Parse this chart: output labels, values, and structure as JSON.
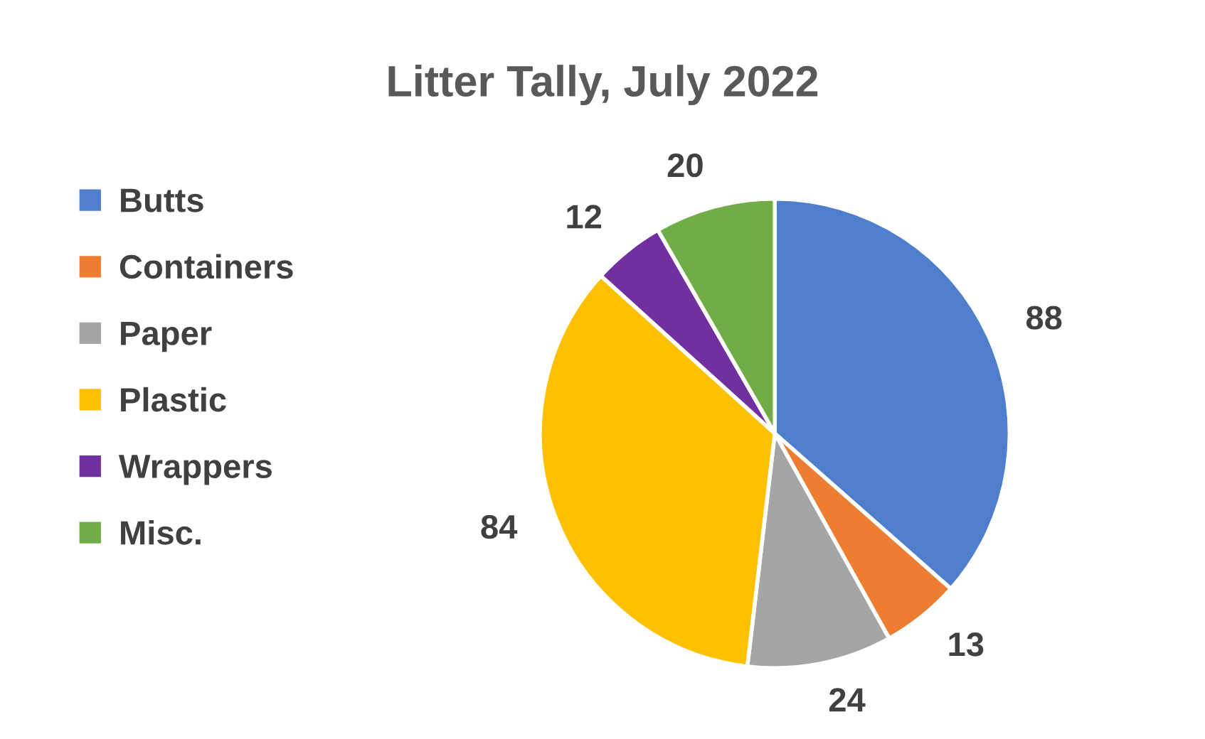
{
  "chart_data": {
    "type": "pie",
    "title": "Litter Tally, July 2022",
    "categories": [
      "Butts",
      "Containers",
      "Paper",
      "Plastic",
      "Wrappers",
      "Misc."
    ],
    "values": [
      88,
      13,
      24,
      84,
      12,
      20
    ],
    "colors": [
      "#4f7fcc",
      "#ed7d31",
      "#a5a5a5",
      "#ffc000",
      "#7030a0",
      "#70ad47"
    ],
    "data_labels": true,
    "legend": "left"
  }
}
